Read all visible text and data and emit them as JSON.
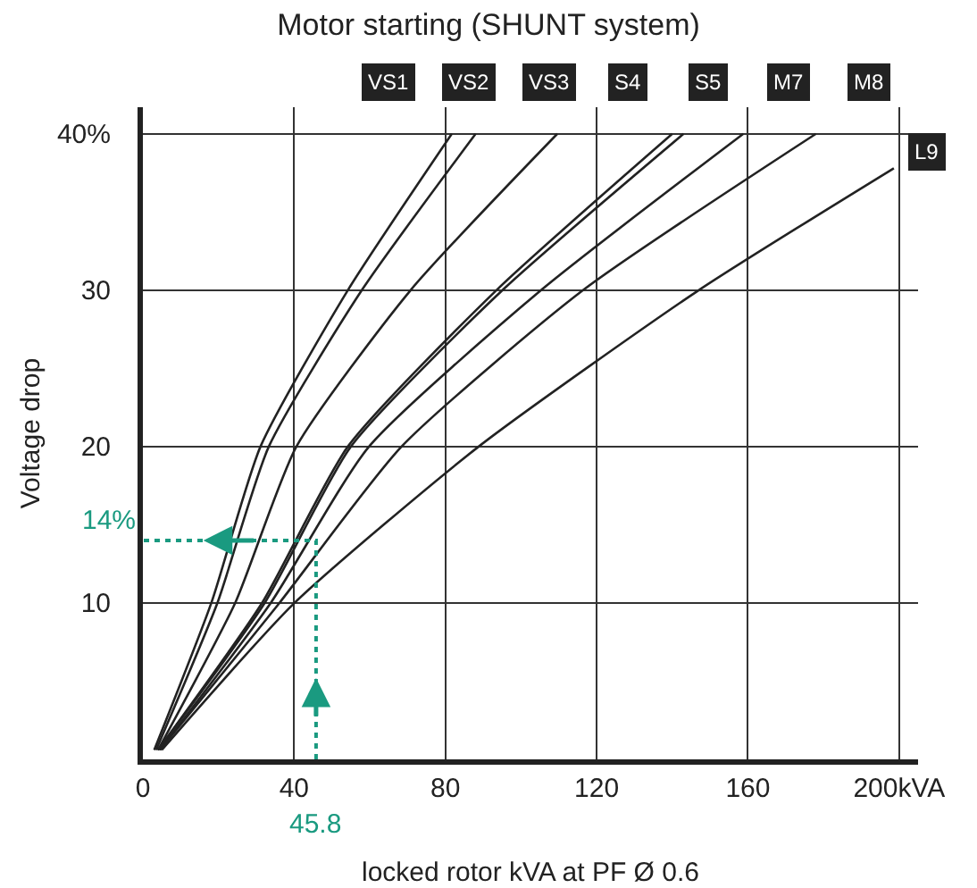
{
  "chart_data": {
    "type": "line",
    "title": "Motor starting (SHUNT system)",
    "xlabel": "locked rotor kVA at PF Ø 0.6",
    "ylabel": "Voltage drop",
    "xlim": [
      0,
      205
    ],
    "ylim": [
      0,
      41.7
    ],
    "xticks": [
      0,
      40,
      80,
      120,
      160,
      {
        "value": 200,
        "label": "200kVA"
      }
    ],
    "yticks": [
      10,
      20,
      30,
      {
        "value": 40,
        "label": "40%"
      }
    ],
    "grid": true,
    "legend": "top",
    "marker": "none",
    "line_style": "solid",
    "series": [
      {
        "name": "VS1",
        "color": "#222222",
        "x": [
          3,
          18.1,
          31.1,
          54.2,
          81.7
        ],
        "values": [
          0.6,
          10,
          20,
          30,
          40
        ]
      },
      {
        "name": "VS2",
        "color": "#222222",
        "x": [
          3.5,
          19.7,
          33.3,
          57.9,
          88
        ],
        "values": [
          0.6,
          10,
          20,
          30,
          40
        ]
      },
      {
        "name": "VS3",
        "color": "#222222",
        "x": [
          4,
          24.4,
          40.6,
          70.8,
          109.6
        ],
        "values": [
          0.6,
          10,
          20,
          30,
          40
        ]
      },
      {
        "name": "S4",
        "color": "#222222",
        "x": [
          4,
          31.5,
          54.2,
          93.5,
          140
        ],
        "values": [
          0.6,
          10,
          20,
          30,
          40
        ]
      },
      {
        "name": "S5",
        "color": "#222222",
        "x": [
          4,
          32.2,
          55,
          95.1,
          143
        ],
        "values": [
          0.6,
          10,
          20,
          30,
          40
        ]
      },
      {
        "name": "M7",
        "color": "#222222",
        "x": [
          4.5,
          33.8,
          59.8,
          105.3,
          158.8
        ],
        "values": [
          0.6,
          10,
          20,
          30,
          40
        ]
      },
      {
        "name": "M8",
        "color": "#222222",
        "x": [
          4.5,
          36.1,
          68.4,
          116.4,
          178
        ],
        "values": [
          0.6,
          10,
          20,
          30,
          40
        ]
      },
      {
        "name": "L9",
        "color": "#222222",
        "x": [
          5,
          40.1,
          88.8,
          147,
          198.6
        ],
        "values": [
          0.6,
          10,
          20,
          30,
          37.8
        ]
      },
      {
        "color": "#1a9a80",
        "line_style": "dotted",
        "x": [
          45.8,
          45.8,
          0
        ],
        "values": [
          0,
          14,
          14
        ]
      }
    ],
    "annotations": [
      {
        "text": "14%",
        "x": 0,
        "y": 14
      },
      {
        "text": "45.8",
        "x": 45.8,
        "y": 0
      }
    ]
  }
}
